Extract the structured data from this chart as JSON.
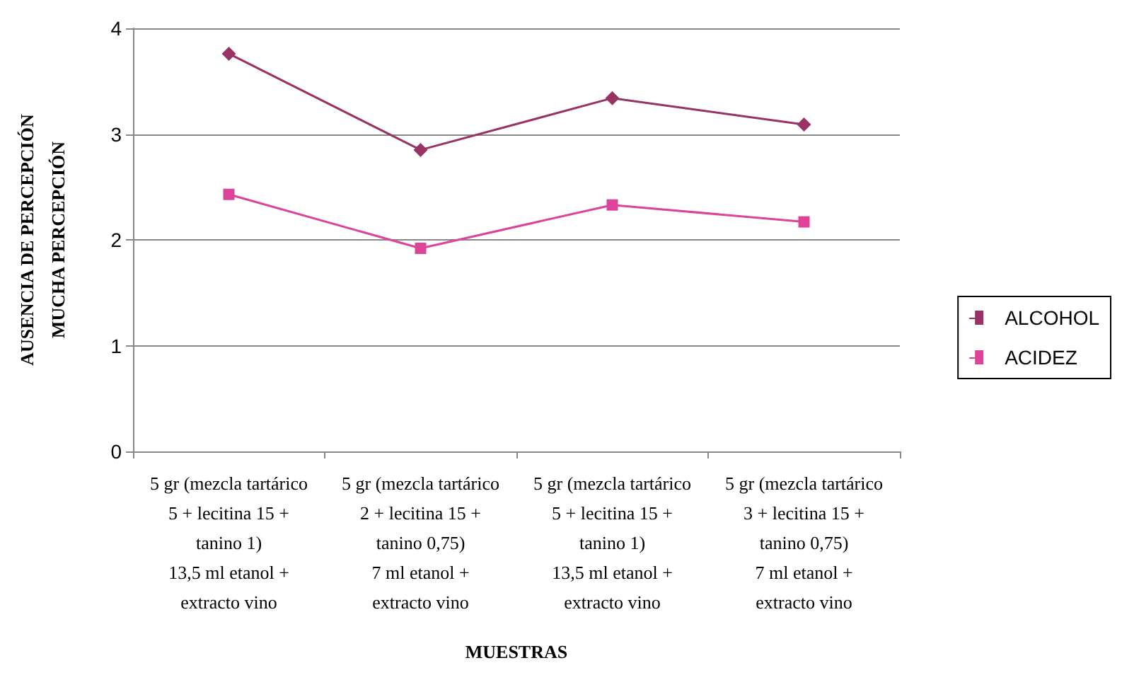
{
  "chart_data": {
    "type": "line",
    "xlabel": "MUESTRAS",
    "ylabel": "AUSENCIA DE PERCEPCIÓN\nMUCHA PERCEPCIÓN",
    "categories": [
      "5 gr (mezcla tartárico\n5 + lecitina 15 +\ntanino 1)\n13,5 ml etanol +\nextracto vino",
      "5 gr (mezcla tartárico\n2 + lecitina 15 +\ntanino 0,75)\n7 ml etanol +\nextracto vino",
      "5 gr (mezcla tartárico\n5 + lecitina 15 +\ntanino 1)\n13,5 ml etanol +\nextracto vino",
      "5 gr (mezcla tartárico\n3 + lecitina 15 +\ntanino 0,75)\n7 ml etanol +\nextracto vino"
    ],
    "series": [
      {
        "name": "ALCOHOL",
        "color": "#993366",
        "marker": "diamond",
        "values": [
          3.76,
          2.85,
          3.34,
          3.09
        ]
      },
      {
        "name": "ACIDEZ",
        "color": "#dd4499",
        "marker": "square",
        "values": [
          2.43,
          1.92,
          2.33,
          2.17
        ]
      }
    ],
    "ylim": [
      0,
      4
    ],
    "yticks": [
      0,
      1,
      2,
      3,
      4
    ],
    "grid": "y",
    "legend": "right",
    "line_style": "solid"
  }
}
